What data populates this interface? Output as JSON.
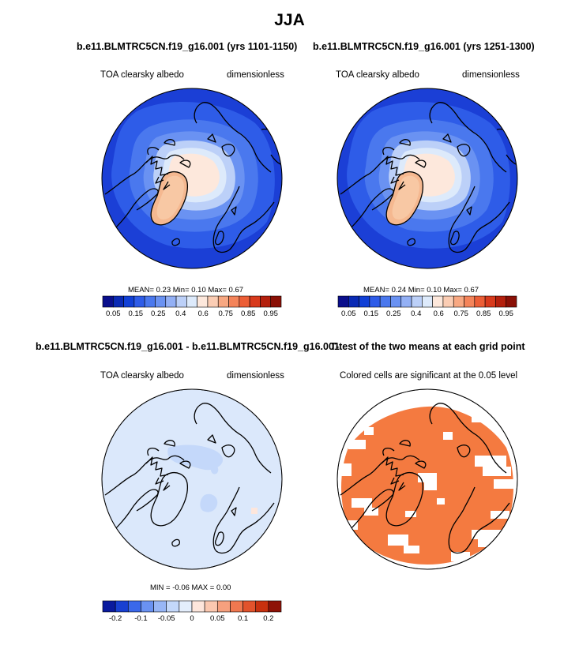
{
  "main_title": "JJA",
  "panels": {
    "tl": {
      "title": "b.e11.BLMTRC5CN.f19_g16.001 (yrs 1101-1150)",
      "left": "TOA clearsky albedo",
      "right": "dimensionless",
      "stats": "MEAN=   0.23  Min=   0.10  Max=   0.67"
    },
    "tr": {
      "title": "b.e11.BLMTRC5CN.f19_g16.001 (yrs 1251-1300)",
      "left": "TOA clearsky albedo",
      "right": "dimensionless",
      "stats": "MEAN=   0.24  Min=   0.10  Max=   0.67"
    },
    "bl": {
      "title": "b.e11.BLMTRC5CN.f19_g16.001 - b.e11.BLMTRC5CN.f19_g16.001",
      "left": "TOA clearsky albedo",
      "right": "dimensionless",
      "stats": "MIN =  -0.06  MAX =   0.00"
    },
    "br": {
      "title": "T-test of the two means at each grid point",
      "left": "Colored cells are significant at the 0.05 level"
    }
  },
  "colorbars": {
    "albedo": {
      "colors": [
        "#0a0f8c",
        "#0a2ab4",
        "#1140d6",
        "#2e5ce8",
        "#4a78ee",
        "#6a92f2",
        "#93b0f5",
        "#bcd0f8",
        "#ddeafb",
        "#fde8dc",
        "#fbcdb4",
        "#f8a882",
        "#f4845a",
        "#ec5e36",
        "#d83a1c",
        "#b4200d",
        "#8a1006"
      ],
      "labels": [
        "0.05",
        "0.15",
        "0.25",
        "0.4",
        "0.6",
        "0.75",
        "0.85",
        "0.95"
      ]
    },
    "diff": {
      "colors": [
        "#0a1a9e",
        "#1840d2",
        "#3a68ea",
        "#6a92f2",
        "#98b6f6",
        "#c4d8fa",
        "#e4eefc",
        "#fde6dc",
        "#fbc8b0",
        "#f6a07e",
        "#f07850",
        "#e2532c",
        "#c8310f",
        "#8e1207"
      ],
      "labels": [
        "-0.2",
        "-0.1",
        "-0.05",
        "0",
        "0.05",
        "0.1",
        "0.2"
      ]
    }
  },
  "colors": {
    "ocean": "#1b3fd6",
    "ice": "#fde3d0",
    "greenland": "#f7c4a2",
    "diff_bg": "#dbe8fb",
    "ttest": "#f47a40"
  }
}
